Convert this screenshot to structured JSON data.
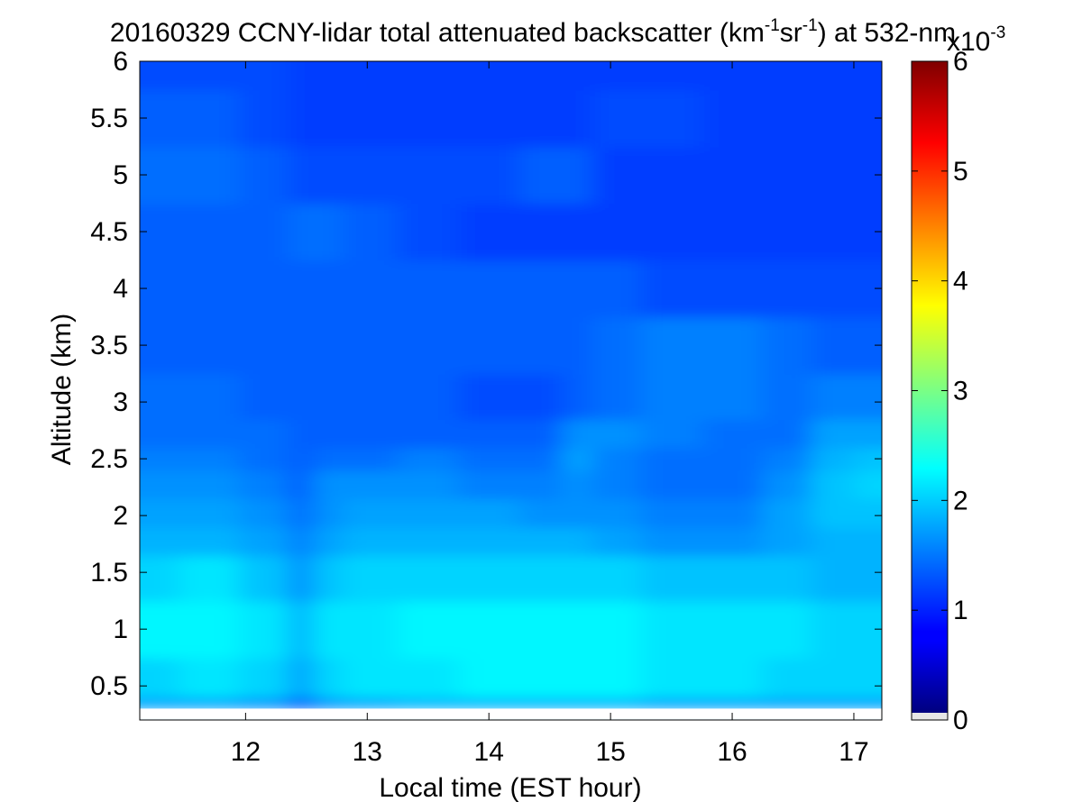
{
  "chart_data": {
    "type": "heatmap",
    "title": {
      "prefix": "20160329 CCNY-lidar total attenuated backscatter (km",
      "sup1": "-1",
      "mid": "sr",
      "sup2": "-1",
      "suffix": ") at 532-nm"
    },
    "xlabel": "Local time (EST hour)",
    "ylabel": "Altitude (km)",
    "xlim": [
      11.13,
      17.23
    ],
    "ylim": [
      0.2,
      6.0
    ],
    "xticks": [
      12,
      13,
      14,
      15,
      16,
      17
    ],
    "yticks": [
      0.5,
      1,
      1.5,
      2,
      2.5,
      3,
      3.5,
      4,
      4.5,
      5,
      5.5,
      6
    ],
    "ytick_labels": [
      "0.5",
      "1",
      "1.5",
      "2",
      "2.5",
      "3",
      "3.5",
      "4",
      "4.5",
      "5",
      "5.5",
      "6"
    ],
    "no_data_below_km": 0.3,
    "colorbar": {
      "colormap": "jet",
      "range": [
        0,
        6
      ],
      "ticks": [
        0,
        1,
        2,
        3,
        4,
        5,
        6
      ],
      "exponent_base": "x10",
      "exponent": "-3"
    },
    "value_units": "x10^-3 km^-1 sr^-1",
    "grid": {
      "times": [
        11.2,
        11.7,
        12.2,
        12.5,
        12.6,
        13.0,
        13.5,
        14.0,
        14.5,
        14.7,
        15.0,
        15.5,
        16.0,
        16.5,
        16.8,
        17.2
      ],
      "altitudes": [
        0.3,
        0.5,
        1.0,
        1.5,
        1.8,
        2.0,
        2.3,
        2.5,
        2.7,
        3.0,
        3.5,
        4.0,
        4.5,
        5.0,
        5.5,
        6.0
      ],
      "values": [
        [
          1.7,
          1.7,
          1.6,
          1.2,
          1.6,
          1.7,
          1.8,
          1.8,
          1.8,
          1.8,
          1.8,
          1.7,
          1.7,
          1.7,
          1.7,
          1.7
        ],
        [
          2.0,
          2.1,
          2.0,
          1.7,
          2.0,
          2.1,
          2.1,
          2.2,
          2.2,
          2.2,
          2.2,
          2.1,
          2.1,
          2.0,
          2.0,
          2.0
        ],
        [
          2.2,
          2.2,
          2.1,
          1.8,
          2.1,
          2.1,
          2.2,
          2.2,
          2.2,
          2.2,
          2.2,
          2.1,
          2.1,
          2.1,
          2.0,
          2.0
        ],
        [
          2.0,
          2.1,
          1.9,
          1.6,
          1.9,
          2.0,
          2.0,
          2.0,
          2.0,
          2.0,
          2.0,
          1.9,
          1.9,
          1.9,
          1.8,
          1.8
        ],
        [
          1.8,
          1.8,
          1.7,
          1.5,
          1.7,
          1.8,
          1.8,
          1.8,
          1.8,
          1.8,
          1.7,
          1.6,
          1.6,
          1.7,
          1.8,
          1.8
        ],
        [
          1.7,
          1.7,
          1.6,
          1.4,
          1.6,
          1.7,
          1.7,
          1.7,
          1.6,
          1.6,
          1.6,
          1.5,
          1.5,
          1.7,
          1.9,
          1.9
        ],
        [
          1.6,
          1.6,
          1.5,
          1.3,
          1.6,
          1.6,
          1.6,
          1.5,
          1.5,
          1.6,
          1.5,
          1.4,
          1.4,
          1.6,
          1.9,
          2.0
        ],
        [
          1.5,
          1.5,
          1.4,
          1.3,
          1.4,
          1.4,
          1.5,
          1.4,
          1.4,
          1.7,
          1.5,
          1.4,
          1.4,
          1.5,
          1.8,
          1.9
        ],
        [
          1.4,
          1.4,
          1.4,
          1.3,
          1.3,
          1.3,
          1.3,
          1.3,
          1.3,
          1.6,
          1.6,
          1.5,
          1.4,
          1.4,
          1.7,
          1.7
        ],
        [
          1.4,
          1.4,
          1.3,
          1.3,
          1.3,
          1.3,
          1.3,
          1.2,
          1.2,
          1.3,
          1.4,
          1.5,
          1.5,
          1.4,
          1.5,
          1.5
        ],
        [
          1.3,
          1.3,
          1.3,
          1.3,
          1.3,
          1.3,
          1.3,
          1.3,
          1.3,
          1.3,
          1.4,
          1.5,
          1.5,
          1.4,
          1.3,
          1.3
        ],
        [
          1.3,
          1.3,
          1.3,
          1.3,
          1.3,
          1.3,
          1.3,
          1.3,
          1.3,
          1.3,
          1.3,
          1.2,
          1.2,
          1.2,
          1.2,
          1.2
        ],
        [
          1.3,
          1.3,
          1.3,
          1.4,
          1.4,
          1.3,
          1.2,
          1.1,
          1.1,
          1.1,
          1.1,
          1.1,
          1.1,
          1.1,
          1.1,
          1.1
        ],
        [
          1.4,
          1.4,
          1.3,
          1.2,
          1.2,
          1.2,
          1.2,
          1.2,
          1.3,
          1.3,
          1.1,
          1.1,
          1.1,
          1.1,
          1.1,
          1.1
        ],
        [
          1.3,
          1.3,
          1.2,
          1.1,
          1.1,
          1.1,
          1.1,
          1.1,
          1.1,
          1.1,
          1.2,
          1.2,
          1.1,
          1.1,
          1.1,
          1.1
        ],
        [
          1.2,
          1.2,
          1.2,
          1.1,
          1.1,
          1.1,
          1.1,
          1.1,
          1.1,
          1.1,
          1.1,
          1.1,
          1.1,
          1.1,
          1.1,
          1.1
        ]
      ]
    }
  }
}
